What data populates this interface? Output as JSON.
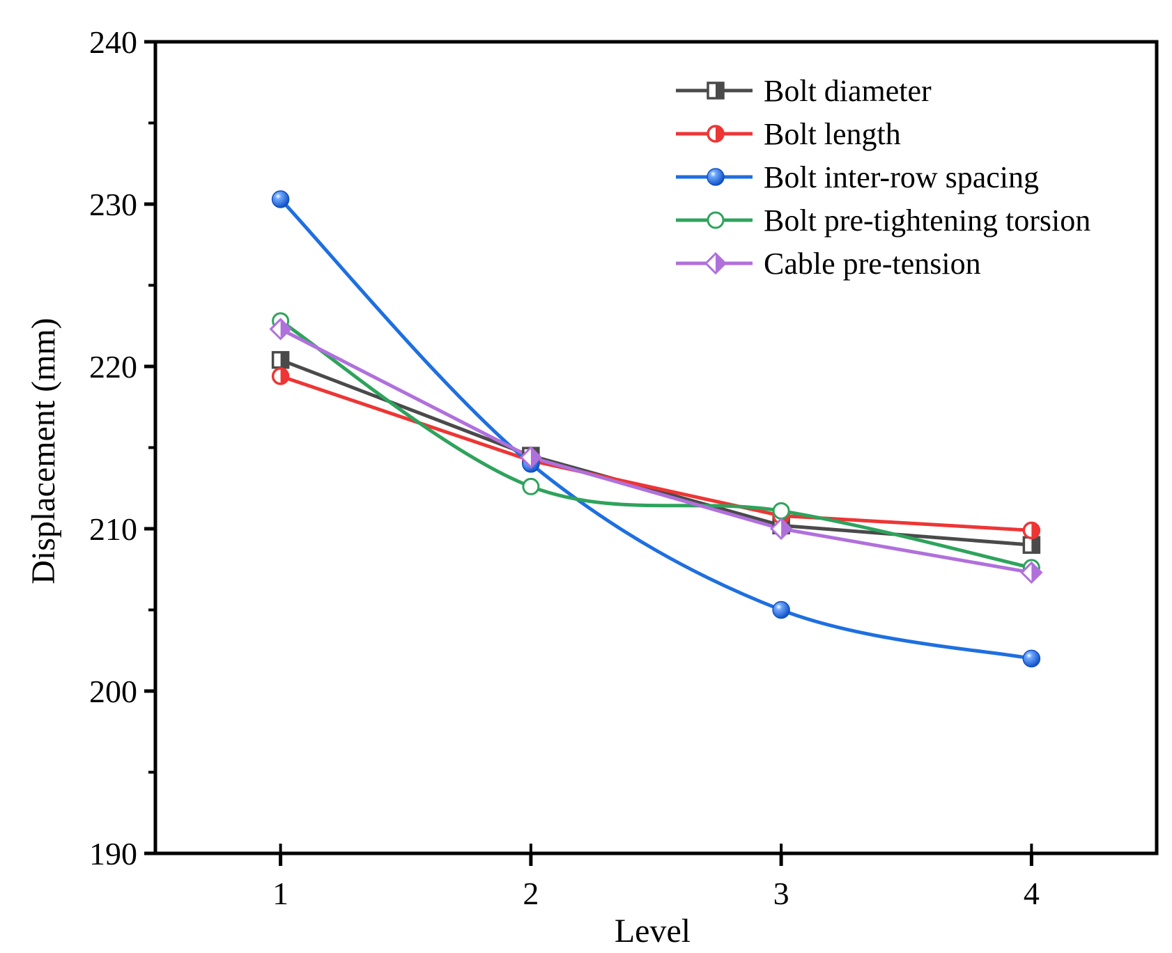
{
  "chart_data": {
    "type": "line",
    "title": "",
    "xlabel": "Level",
    "ylabel": "Displacement (mm)",
    "categories": [
      "1",
      "2",
      "3",
      "4"
    ],
    "x": [
      1,
      2,
      3,
      4
    ],
    "xlim": [
      0.5,
      4.5
    ],
    "ylim": [
      190,
      240
    ],
    "y_ticks": [
      190,
      200,
      210,
      220,
      230,
      240
    ],
    "legend_position": "top-right",
    "grid": false,
    "series": [
      {
        "name": "Bolt diameter",
        "color": "#4a4a4a",
        "marker": "half-square",
        "smooth": false,
        "values": [
          220.4,
          214.5,
          210.2,
          209.0
        ]
      },
      {
        "name": "Bolt length",
        "color": "#ee3535",
        "marker": "half-circle",
        "smooth": false,
        "values": [
          219.4,
          214.2,
          210.8,
          209.9
        ]
      },
      {
        "name": "Bolt inter-row spacing",
        "color": "#1e6fe0",
        "marker": "ball",
        "smooth": true,
        "values": [
          230.3,
          214.0,
          205.0,
          202.0
        ]
      },
      {
        "name": "Bolt pre-tightening torsion",
        "color": "#2ea35c",
        "marker": "open-circle",
        "smooth": true,
        "values": [
          222.8,
          212.6,
          211.1,
          207.6
        ]
      },
      {
        "name": "Cable pre-tension",
        "color": "#b070dc",
        "marker": "half-diamond",
        "smooth": false,
        "values": [
          222.3,
          214.4,
          210.0,
          207.3
        ]
      }
    ]
  }
}
